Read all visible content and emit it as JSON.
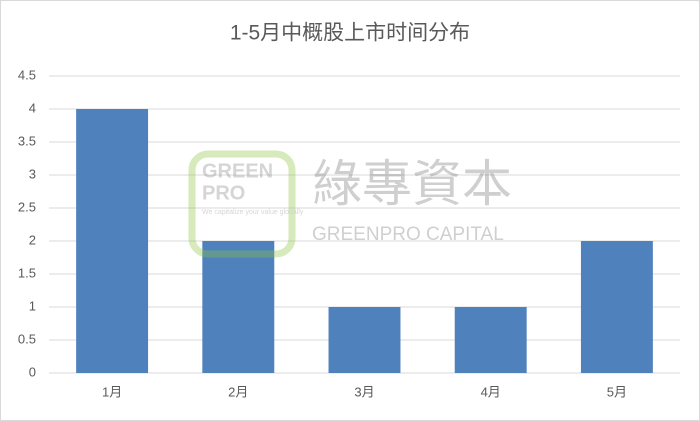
{
  "chart_data": {
    "type": "bar",
    "title": "1-5月中概股上市时间分布",
    "categories": [
      "1月",
      "2月",
      "3月",
      "4月",
      "5月"
    ],
    "values": [
      4,
      2,
      1,
      1,
      2
    ],
    "color": "#4f81bd",
    "ylim": [
      0,
      4.5
    ],
    "yticks": [
      0,
      0.5,
      1,
      1.5,
      2,
      2.5,
      3,
      3.5,
      4,
      4.5
    ],
    "grid": true,
    "watermark": {
      "logo_top": "GREEN",
      "logo_bottom": "PRO",
      "logo_tagline": "We capitalize your value globally",
      "name_cn": "綠專資本",
      "name_en": "GREENPRO CAPITAL"
    }
  }
}
